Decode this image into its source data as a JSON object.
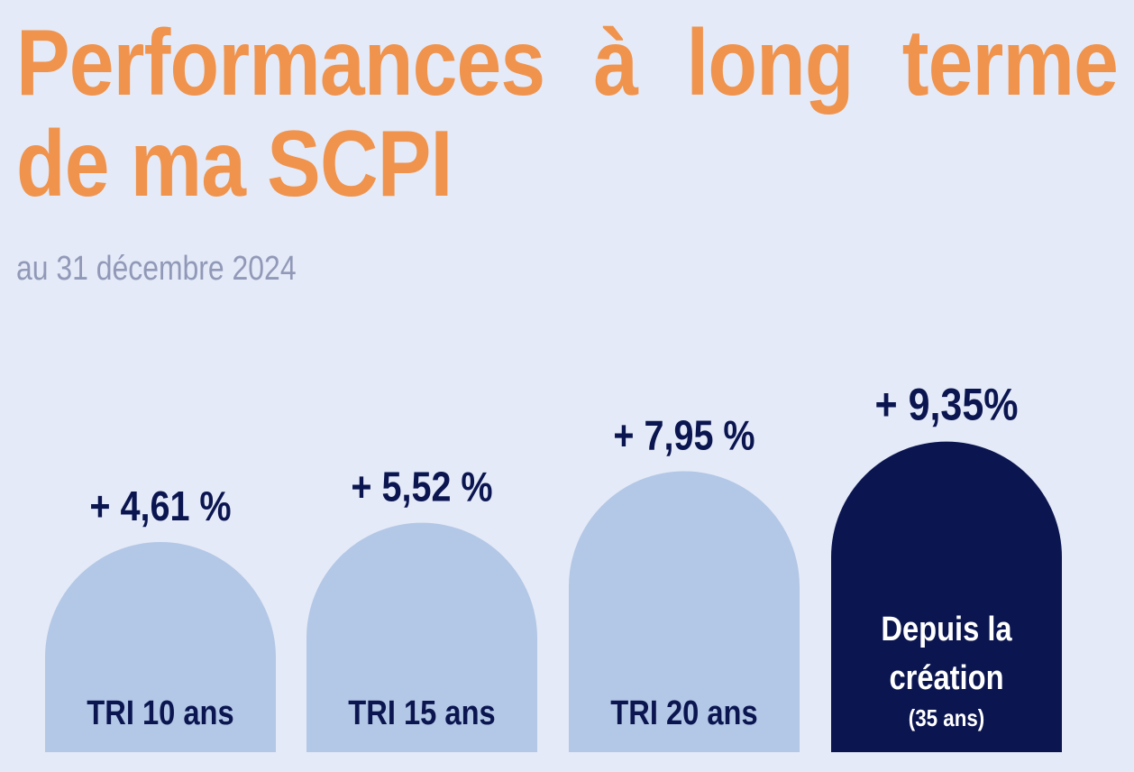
{
  "title_line1": "Performances à long terme",
  "title_line2": "de ma SCPI",
  "subtitle": "au 31 décembre 2024",
  "colors": {
    "title": "#f0934d",
    "bar_light": "#b3c7e6",
    "bar_dark": "#0b1651",
    "text_dark": "#0b1651",
    "text_light": "#ffffff",
    "background": "#e4eaf7"
  },
  "chart_data": {
    "type": "bar",
    "title": "Performances à long terme de ma SCPI",
    "subtitle": "au 31 décembre 2024",
    "categories": [
      "TRI 10 ans",
      "TRI 15 ans",
      "TRI 20 ans",
      "Depuis la création (35 ans)"
    ],
    "values": [
      4.61,
      5.52,
      7.95,
      9.35
    ],
    "value_labels": [
      "+ 4,61 %",
      "+ 5,52 %",
      "+ 7,95 %",
      "+ 9,35%"
    ],
    "bars": [
      {
        "label_lines": [
          "TRI 10 ans"
        ],
        "note": "",
        "highlight": false
      },
      {
        "label_lines": [
          "TRI 15 ans"
        ],
        "note": "",
        "highlight": false
      },
      {
        "label_lines": [
          "TRI 20 ans"
        ],
        "note": "",
        "highlight": false
      },
      {
        "label_lines": [
          "Depuis la",
          "création"
        ],
        "note": "(35 ans)",
        "highlight": true
      }
    ]
  }
}
